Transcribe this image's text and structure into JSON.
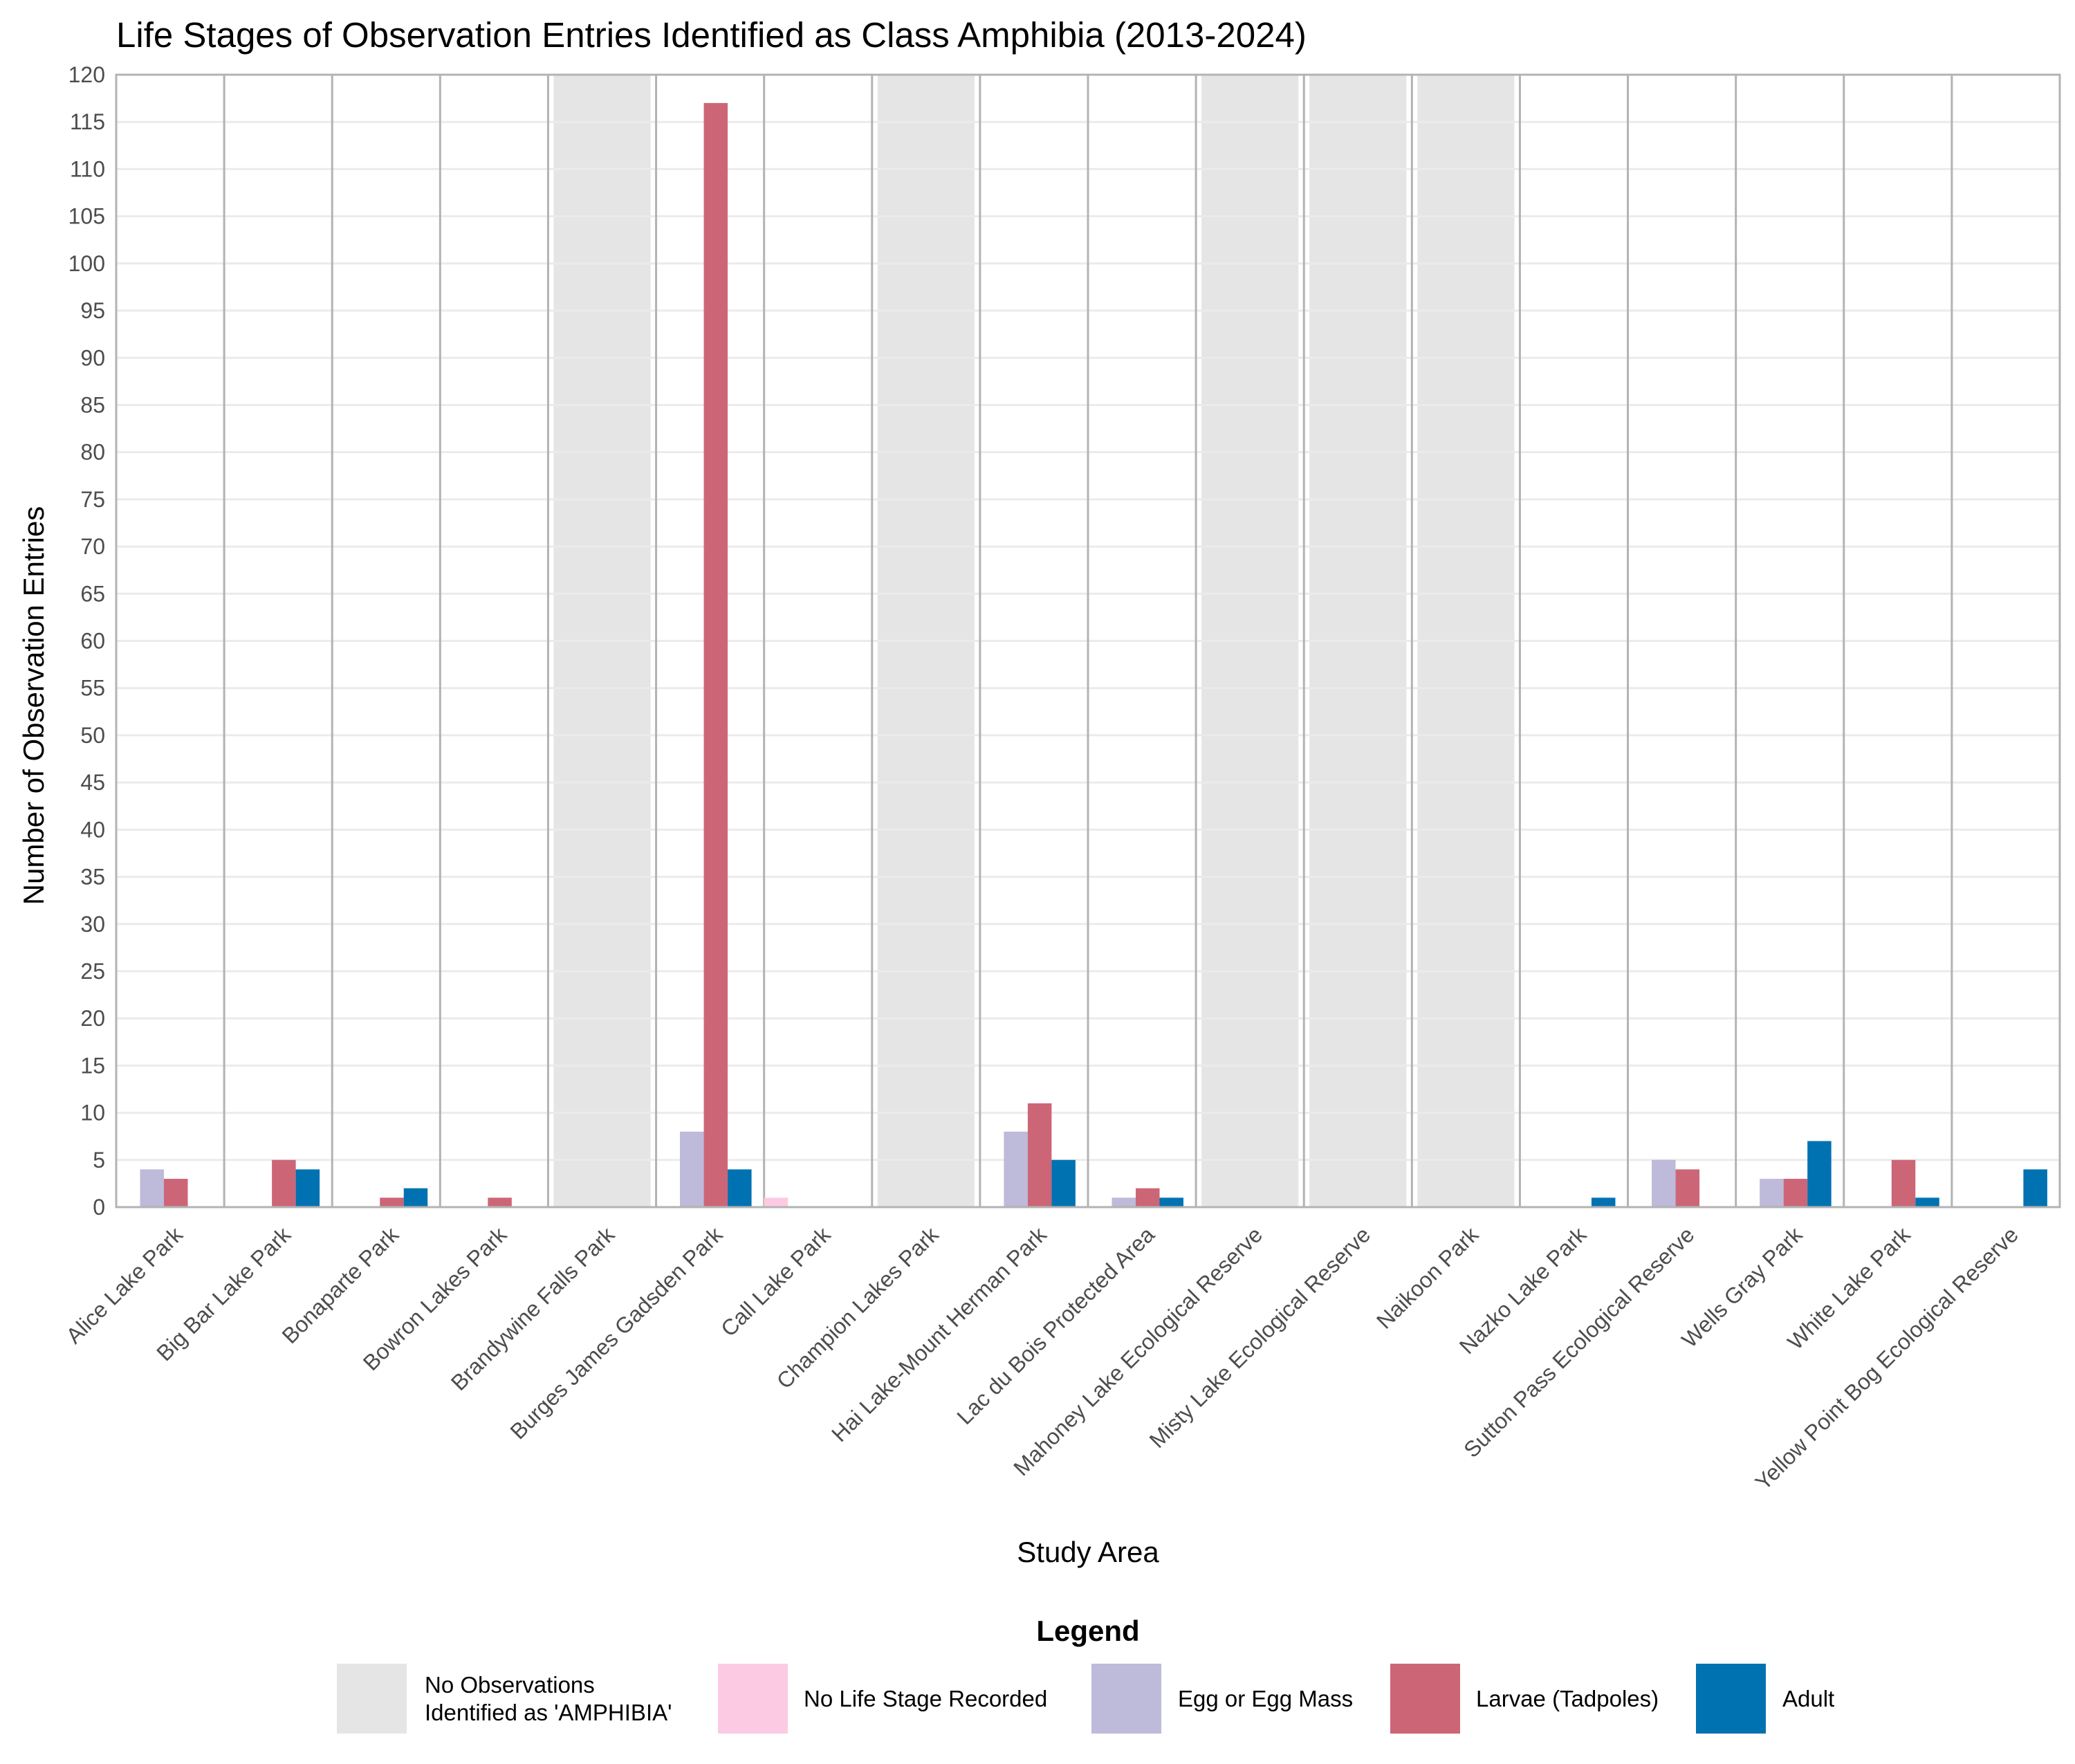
{
  "chart_data": {
    "type": "bar",
    "title": "Life Stages of Observation Entries Identified as Class Amphibia (2013-2024)",
    "xlabel": "Study Area",
    "ylabel": "Number of Observation Entries",
    "ylim": [
      0,
      120
    ],
    "y_ticks": [
      0,
      5,
      10,
      15,
      20,
      25,
      30,
      35,
      40,
      45,
      50,
      55,
      60,
      65,
      70,
      75,
      80,
      85,
      90,
      95,
      100,
      105,
      110,
      115,
      120
    ],
    "grid": true,
    "legend_title": "Legend",
    "legend_position": "bottom",
    "categories": [
      "Alice Lake Park",
      "Big Bar Lake Park",
      "Bonaparte Park",
      "Bowron Lakes Park",
      "Brandywine Falls Park",
      "Burges James Gadsden Park",
      "Call Lake Park",
      "Champion Lakes Park",
      "Hai Lake-Mount Herman Park",
      "Lac du Bois Protected Area",
      "Mahoney Lake Ecological Reserve",
      "Misty Lake Ecological Reserve",
      "Naikoon Park",
      "Nazko Lake Park",
      "Sutton Pass Ecological Reserve",
      "Wells Gray Park",
      "White Lake Park",
      "Yellow Point Bog Ecological Reserve"
    ],
    "no_observation_flags": [
      false,
      false,
      false,
      false,
      true,
      false,
      false,
      true,
      false,
      false,
      true,
      true,
      true,
      false,
      false,
      false,
      false,
      false
    ],
    "no_observation_label": "No Observations Identified as 'AMPHIBIA'",
    "no_observation_label_lines": [
      "No Observations",
      "Identified as 'AMPHIBIA'"
    ],
    "no_observation_color": "#e5e5e5",
    "series": [
      {
        "name": "No Life Stage Recorded",
        "color": "#fccbe3",
        "values": [
          0,
          0,
          0,
          0,
          0,
          0,
          1,
          0,
          0,
          0,
          0,
          0,
          0,
          0,
          0,
          0,
          0,
          0
        ]
      },
      {
        "name": "Egg or Egg Mass",
        "color": "#bdbada",
        "values": [
          4,
          0,
          0,
          0,
          0,
          8,
          0,
          0,
          8,
          1,
          0,
          0,
          0,
          0,
          5,
          3,
          0,
          0
        ]
      },
      {
        "name": "Larvae (Tadpoles)",
        "color": "#cc6677",
        "values": [
          3,
          5,
          1,
          1,
          0,
          117,
          0,
          0,
          11,
          2,
          0,
          0,
          0,
          0,
          4,
          3,
          5,
          0
        ]
      },
      {
        "name": "Adult",
        "color": "#0072b2",
        "values": [
          0,
          4,
          2,
          0,
          0,
          4,
          0,
          0,
          5,
          1,
          0,
          0,
          0,
          1,
          0,
          7,
          1,
          4
        ]
      }
    ]
  }
}
